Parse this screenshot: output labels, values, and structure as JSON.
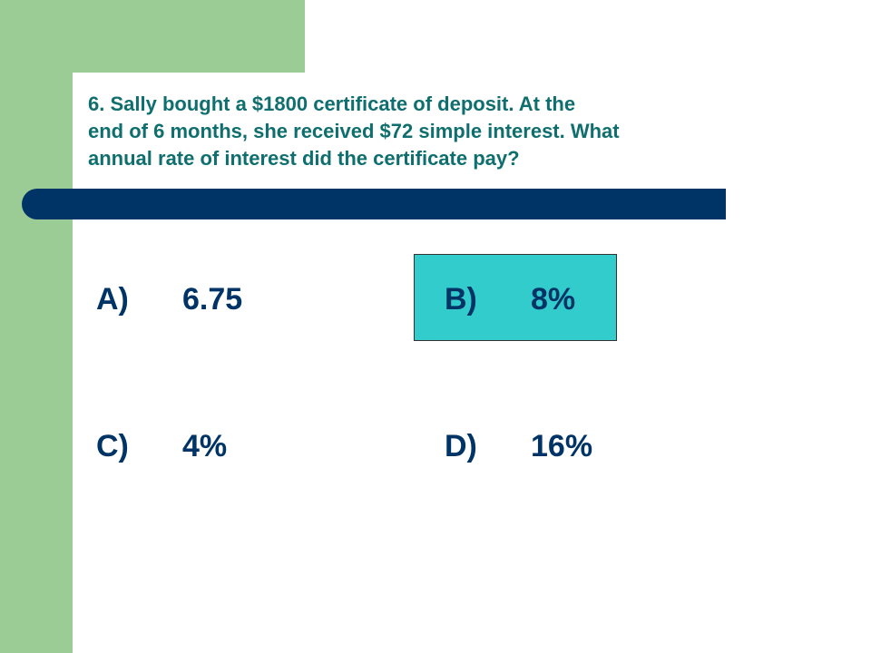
{
  "colors": {
    "green_band": "#9ccc95",
    "title_text": "#0f6e6e",
    "navy_bar": "#003366",
    "highlight": "#33cccc",
    "answer_text": "#003366"
  },
  "question": {
    "text": "6.   Sally bought a $1800 certificate of deposit.  At the\nend of 6 months, she received $72 simple interest.  What\nannual rate of interest did the certificate pay?"
  },
  "answers": [
    {
      "letter": "A)",
      "value": "6.75",
      "highlighted": false
    },
    {
      "letter": "B)",
      "value": "8%",
      "highlighted": true
    },
    {
      "letter": "C)",
      "value": "4%",
      "highlighted": false
    },
    {
      "letter": "D)",
      "value": "16%",
      "highlighted": false
    }
  ]
}
